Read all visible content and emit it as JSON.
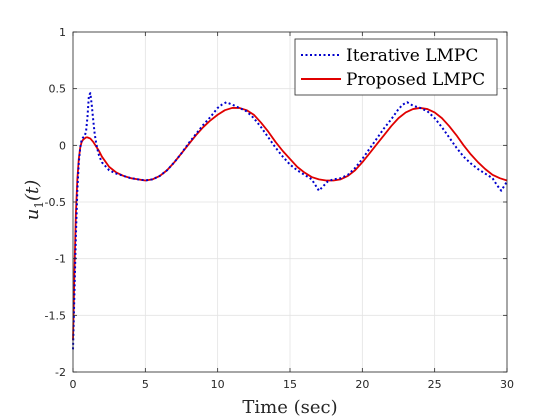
{
  "chart_data": {
    "type": "line",
    "xlabel": "Time (sec)",
    "ylabel_main": "u",
    "ylabel_sub": "1",
    "ylabel_arg": "(t)",
    "xlim": [
      0,
      30
    ],
    "ylim": [
      -2,
      1
    ],
    "x_ticks": [
      0,
      5,
      10,
      15,
      20,
      25,
      30
    ],
    "x_tick_labels": [
      "0",
      "5",
      "10",
      "15",
      "20",
      "25",
      "30"
    ],
    "y_ticks": [
      -2,
      -1.5,
      -1,
      -0.5,
      0,
      0.5,
      1
    ],
    "y_tick_labels": [
      "-2",
      "-1.5",
      "-1",
      "-0.5",
      "0",
      "0.5",
      "1"
    ],
    "grid": true,
    "legend_position": "top-right",
    "series": [
      {
        "name": "Iterative LMPC",
        "color": "#0000cc",
        "style": "dotted",
        "x": [
          0,
          0.1,
          0.2,
          0.3,
          0.4,
          0.5,
          0.6,
          0.7,
          0.8,
          0.9,
          1.0,
          1.1,
          1.2,
          1.3,
          1.4,
          1.5,
          1.6,
          1.7,
          1.8,
          2.0,
          2.5,
          3.0,
          3.5,
          4.0,
          4.5,
          5.0,
          5.5,
          6.0,
          6.5,
          7.0,
          7.5,
          8.0,
          8.5,
          9.0,
          9.5,
          10.0,
          10.3,
          10.6,
          11.0,
          11.5,
          12.0,
          12.5,
          13.0,
          13.5,
          14.0,
          14.5,
          15.0,
          15.5,
          16.0,
          16.5,
          16.8,
          17.0,
          17.3,
          17.6,
          18.0,
          18.5,
          19.0,
          19.5,
          20.0,
          20.5,
          21.0,
          21.5,
          22.0,
          22.5,
          22.8,
          23.1,
          23.5,
          24.0,
          24.5,
          25.0,
          25.5,
          26.0,
          26.5,
          27.0,
          27.5,
          28.0,
          28.5,
          29.0,
          29.3,
          29.6,
          30.0
        ],
        "y": [
          -1.8,
          -1.3,
          -0.8,
          -0.4,
          -0.15,
          -0.02,
          0.05,
          0.07,
          0.08,
          0.12,
          0.25,
          0.44,
          0.46,
          0.35,
          0.22,
          0.1,
          0.02,
          -0.04,
          -0.09,
          -0.15,
          -0.22,
          -0.25,
          -0.27,
          -0.29,
          -0.3,
          -0.31,
          -0.3,
          -0.27,
          -0.22,
          -0.15,
          -0.07,
          0.02,
          0.1,
          0.18,
          0.25,
          0.33,
          0.36,
          0.38,
          0.36,
          0.33,
          0.3,
          0.24,
          0.16,
          0.07,
          -0.02,
          -0.1,
          -0.17,
          -0.22,
          -0.26,
          -0.3,
          -0.36,
          -0.4,
          -0.36,
          -0.32,
          -0.3,
          -0.29,
          -0.26,
          -0.2,
          -0.12,
          -0.03,
          0.06,
          0.15,
          0.23,
          0.32,
          0.36,
          0.38,
          0.35,
          0.33,
          0.3,
          0.24,
          0.16,
          0.07,
          -0.02,
          -0.1,
          -0.16,
          -0.21,
          -0.25,
          -0.29,
          -0.35,
          -0.4,
          -0.32
        ]
      },
      {
        "name": "Proposed LMPC",
        "color": "#e00000",
        "style": "solid",
        "x": [
          0,
          0.1,
          0.2,
          0.3,
          0.4,
          0.5,
          0.6,
          0.7,
          0.8,
          0.9,
          1.0,
          1.2,
          1.4,
          1.6,
          1.8,
          2.0,
          2.5,
          3.0,
          3.5,
          4.0,
          4.5,
          5.0,
          5.5,
          6.0,
          6.5,
          7.0,
          7.5,
          8.0,
          8.5,
          9.0,
          9.5,
          10.0,
          10.5,
          11.0,
          11.5,
          12.0,
          12.5,
          13.0,
          13.5,
          14.0,
          14.5,
          15.0,
          15.5,
          16.0,
          16.5,
          17.0,
          17.5,
          18.0,
          18.5,
          19.0,
          19.5,
          20.0,
          20.5,
          21.0,
          21.5,
          22.0,
          22.5,
          23.0,
          23.5,
          24.0,
          24.5,
          25.0,
          25.5,
          26.0,
          26.5,
          27.0,
          27.5,
          28.0,
          28.5,
          29.0,
          29.5,
          30.0
        ],
        "y": [
          -1.72,
          -1.1,
          -0.6,
          -0.3,
          -0.12,
          -0.02,
          0.03,
          0.05,
          0.06,
          0.07,
          0.07,
          0.06,
          0.03,
          -0.01,
          -0.05,
          -0.1,
          -0.19,
          -0.24,
          -0.27,
          -0.29,
          -0.3,
          -0.31,
          -0.3,
          -0.27,
          -0.22,
          -0.15,
          -0.07,
          0.01,
          0.09,
          0.16,
          0.22,
          0.27,
          0.31,
          0.33,
          0.33,
          0.31,
          0.27,
          0.2,
          0.12,
          0.03,
          -0.05,
          -0.12,
          -0.19,
          -0.24,
          -0.28,
          -0.3,
          -0.31,
          -0.31,
          -0.3,
          -0.27,
          -0.22,
          -0.15,
          -0.07,
          0.01,
          0.09,
          0.17,
          0.24,
          0.29,
          0.32,
          0.33,
          0.32,
          0.29,
          0.24,
          0.17,
          0.09,
          0.0,
          -0.08,
          -0.15,
          -0.21,
          -0.26,
          -0.29,
          -0.31
        ]
      }
    ]
  }
}
